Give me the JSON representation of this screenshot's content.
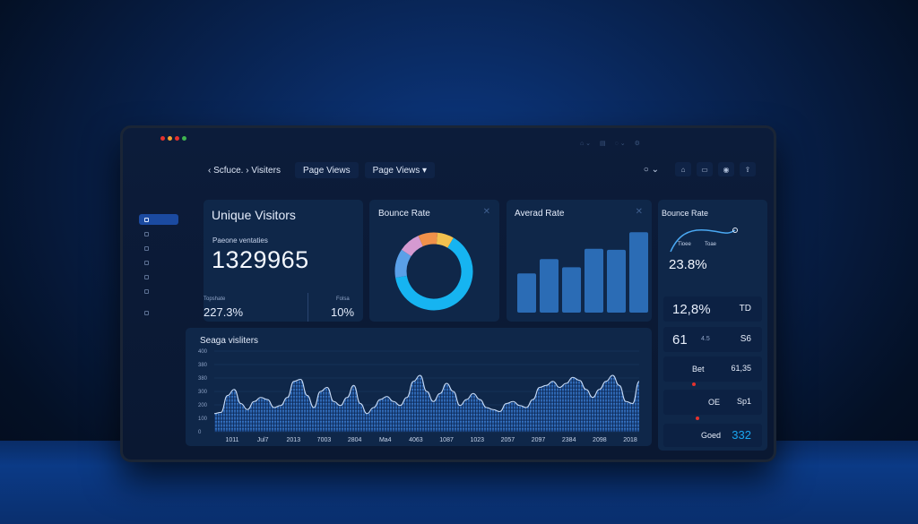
{
  "navbar": {
    "breadcrumb": "‹ Scfuce. › Visiters",
    "tab_page_views_1": "Page Views",
    "tab_page_views_2": "Page Views ▾",
    "right_toggle": "○ ⌄"
  },
  "unique_visitors": {
    "title": "Unique Visitors",
    "label": "Paeone ventaties",
    "value": "1329965",
    "sub_left_label": "Topshate",
    "sub_left_value": "227.3%",
    "sub_right_label": "Folsa",
    "sub_right_value": "10%"
  },
  "bounce_rate_donut": {
    "title": "Bounce Rate",
    "segments": [
      {
        "name": "main",
        "value": 64,
        "color": "#16b4f1"
      },
      {
        "name": "seg2",
        "value": 12,
        "color": "#5aa0e8"
      },
      {
        "name": "seg3",
        "value": 9,
        "color": "#d59ad1"
      },
      {
        "name": "seg4",
        "value": 8,
        "color": "#f0914a"
      },
      {
        "name": "seg5",
        "value": 7,
        "color": "#f2c14e"
      }
    ]
  },
  "averad_rate": {
    "title": "Averad Rate",
    "bars": [
      38,
      52,
      44,
      62,
      61,
      78,
      62
    ]
  },
  "bounce_rate_side": {
    "title": "Bounce Rate",
    "mini_label_1": "Tioee",
    "mini_label_2": "Toae",
    "percent": "23.8%"
  },
  "right_panel": {
    "rows": [
      {
        "a": "12,8%",
        "b": "TD"
      },
      {
        "a": "61",
        "a_small": "4.5",
        "b": "S6"
      },
      {
        "a": "Bet",
        "b": "61,35"
      },
      {
        "a": "OE",
        "b": "Sp1"
      },
      {
        "a": "Goed",
        "b": "332"
      }
    ]
  },
  "colors": {
    "accent": "#16b4f1",
    "card": "#0f2749",
    "bar": "#2b6cb5",
    "red_marker": "#e5322d"
  },
  "chart_data": {
    "type": "area",
    "title": "Seaga visliters",
    "x_ticks": [
      "1011",
      "Jul7",
      "2013",
      "7003",
      "2804",
      "Ma4",
      "4063",
      "1087",
      "1023",
      "2057",
      "2097",
      "2384",
      "2098",
      "2018"
    ],
    "y_ticks": [
      "0",
      "100",
      "200",
      "300",
      "380",
      "380",
      "400"
    ],
    "ylim": [
      0,
      400
    ],
    "x": [
      0,
      1,
      2,
      3,
      4,
      5,
      6,
      7,
      8,
      9,
      10,
      11,
      12,
      13,
      14,
      15,
      16,
      17,
      18,
      19,
      20,
      21,
      22,
      23,
      24,
      25,
      26,
      27,
      28,
      29,
      30,
      31,
      32,
      33,
      34,
      35,
      36,
      37,
      38,
      39,
      40,
      41,
      42,
      43,
      44,
      45,
      46,
      47,
      48,
      49,
      50,
      51,
      52,
      53,
      54,
      55,
      56,
      57,
      58,
      59,
      60,
      61,
      62,
      63,
      64
    ],
    "values": [
      90,
      96,
      180,
      210,
      140,
      110,
      150,
      170,
      160,
      120,
      130,
      170,
      250,
      260,
      180,
      120,
      200,
      220,
      150,
      130,
      170,
      230,
      140,
      90,
      120,
      160,
      175,
      150,
      130,
      170,
      250,
      280,
      200,
      150,
      190,
      240,
      200,
      130,
      160,
      190,
      160,
      120,
      110,
      100,
      140,
      150,
      130,
      120,
      160,
      220,
      230,
      250,
      220,
      240,
      270,
      255,
      210,
      170,
      210,
      250,
      280,
      230,
      150,
      140,
      250
    ]
  }
}
